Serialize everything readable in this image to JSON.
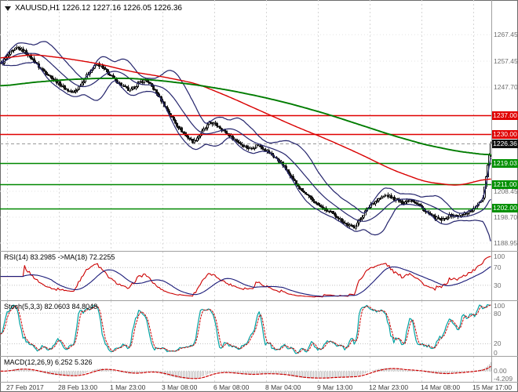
{
  "header": {
    "symbol_line": "XAUUSD,H1 1226.12 1227.16 1226.05 1226.36"
  },
  "colors": {
    "background": "#ffffff",
    "candle": "#141414",
    "bull_fill": "#ffffff",
    "grid_v": "#d6d6d6",
    "grid_h": "#e3e3e3",
    "level": "#c4c4c4",
    "axis_text": "#6f6f6f"
  },
  "time_axis": {
    "labels": [
      "27 Feb 2017",
      "28 Feb 13:00",
      "1 Mar 23:00",
      "3 Mar 08:00",
      "6 Mar 08:00",
      "8 Mar 04:00",
      "9 Mar 13:00",
      "12 Mar 23:00",
      "14 Mar 08:00",
      "15 Mar 17:00"
    ]
  },
  "chart_data": [
    {
      "id": "main",
      "type": "candlestick",
      "symbol": "XAUUSD",
      "timeframe": "H1",
      "open": 1226.12,
      "high": 1227.16,
      "low": 1226.05,
      "close": 1226.36,
      "y_range": [
        1186.0,
        1280.5
      ],
      "y_ticks": [
        {
          "v": 1267.45,
          "label": "1267.45"
        },
        {
          "v": 1257.45,
          "label": "1257.45"
        },
        {
          "v": 1247.7,
          "label": "1247.70"
        },
        {
          "v": 1208.45,
          "label": "1208.45"
        },
        {
          "v": 1198.7,
          "label": "1198.70"
        },
        {
          "v": 1188.95,
          "label": "1188.95"
        }
      ],
      "price_lines": [
        {
          "v": 1237.0,
          "label": "1237.00",
          "color": "#e00000",
          "badge": "#e00000",
          "style": "solid"
        },
        {
          "v": 1230.0,
          "label": "1230.00",
          "color": "#e00000",
          "badge": "#e00000",
          "style": "solid"
        },
        {
          "v": 1226.36,
          "label": "1226.36",
          "color": "#999999",
          "badge": "#111111",
          "style": "dashed"
        },
        {
          "v": 1219.03,
          "label": "1219.03",
          "color": "#008800",
          "badge": "#009000",
          "style": "solid"
        },
        {
          "v": 1211.0,
          "label": "1211.00",
          "color": "#008800",
          "badge": "#009000",
          "style": "solid"
        },
        {
          "v": 1202.0,
          "label": "1202.00",
          "color": "#008800",
          "badge": "#009000",
          "style": "solid"
        }
      ],
      "candles": 310,
      "noise_amp": 1.1,
      "close_anchors": [
        1256.5,
        1260,
        1262.5,
        1261,
        1258,
        1254.5,
        1252,
        1249.5,
        1247,
        1245.5,
        1249,
        1253.5,
        1256.5,
        1254,
        1251,
        1248.5,
        1246,
        1249,
        1250.5,
        1247,
        1242.5,
        1237.5,
        1233,
        1229.5,
        1227,
        1230.5,
        1234.5,
        1233,
        1230.5,
        1228,
        1226,
        1224.5,
        1226,
        1224,
        1221.5,
        1219,
        1214.5,
        1210,
        1207,
        1204.5,
        1202,
        1200.5,
        1198.5,
        1196,
        1194.8,
        1199,
        1203.5,
        1205.5,
        1207,
        1205.5,
        1204,
        1205.5,
        1203.5,
        1200.5,
        1198.5,
        1197.5,
        1199.5,
        1199,
        1200.5,
        1202,
        1206,
        1226.36
      ],
      "overlays": {
        "bollinger": {
          "period": 20,
          "deviation": 2,
          "color": "#24246c"
        },
        "ma_fast": {
          "color": "#d90000",
          "anchors": [
            1258.5,
            1260,
            1258.5,
            1256.5,
            1253.5,
            1251.5,
            1249,
            1244,
            1238.5,
            1233,
            1228,
            1222.5,
            1216.5,
            1212,
            1210.5,
            1213.5
          ]
        },
        "ma_slow": {
          "color": "#007c00",
          "anchors": [
            1248,
            1249.5,
            1250.5,
            1251,
            1251,
            1250,
            1248.5,
            1246.5,
            1244,
            1241,
            1237.5,
            1233.5,
            1229.5,
            1226,
            1223.5,
            1222
          ]
        }
      }
    },
    {
      "id": "rsi",
      "type": "line",
      "label": "RSI(14) 83.2985  ->MA(18) 72.2255",
      "period": 14,
      "value": 83.2985,
      "ma_period": 18,
      "ma_value": 72.2255,
      "y_range": [
        -4,
        106
      ],
      "levels": [
        70,
        30
      ],
      "y_ticks": [
        {
          "v": 100,
          "label": "100"
        },
        {
          "v": 70,
          "label": "70"
        },
        {
          "v": 30,
          "label": "30"
        }
      ],
      "colors": {
        "line": "#cc0000",
        "ma": "#1a1a78"
      }
    },
    {
      "id": "stoch",
      "type": "line",
      "label": "Stoch(5,3,3) 82.0603 84.8048",
      "k_value": 82.0603,
      "d_value": 84.8048,
      "y_range": [
        -4,
        104
      ],
      "levels": [
        80,
        20
      ],
      "y_ticks": [
        {
          "v": 100,
          "label": "100"
        },
        {
          "v": 80,
          "label": "80"
        },
        {
          "v": 20,
          "label": "20"
        },
        {
          "v": 0,
          "label": "0"
        }
      ],
      "colors": {
        "k": "#00a2a2",
        "d": "#cc0000"
      }
    },
    {
      "id": "macd",
      "type": "histogram",
      "label": "MACD(12,26,9) 6.252 5.326",
      "macd_value": 6.252,
      "signal_value": 5.326,
      "y_range": [
        -6.2,
        8.4
      ],
      "y_ticks": [
        {
          "v": 0,
          "label": "0.00"
        },
        {
          "v": -4.209,
          "label": "-4.209"
        }
      ],
      "colors": {
        "hist": "#bdbdbd",
        "signal": "#cc0000"
      }
    }
  ]
}
